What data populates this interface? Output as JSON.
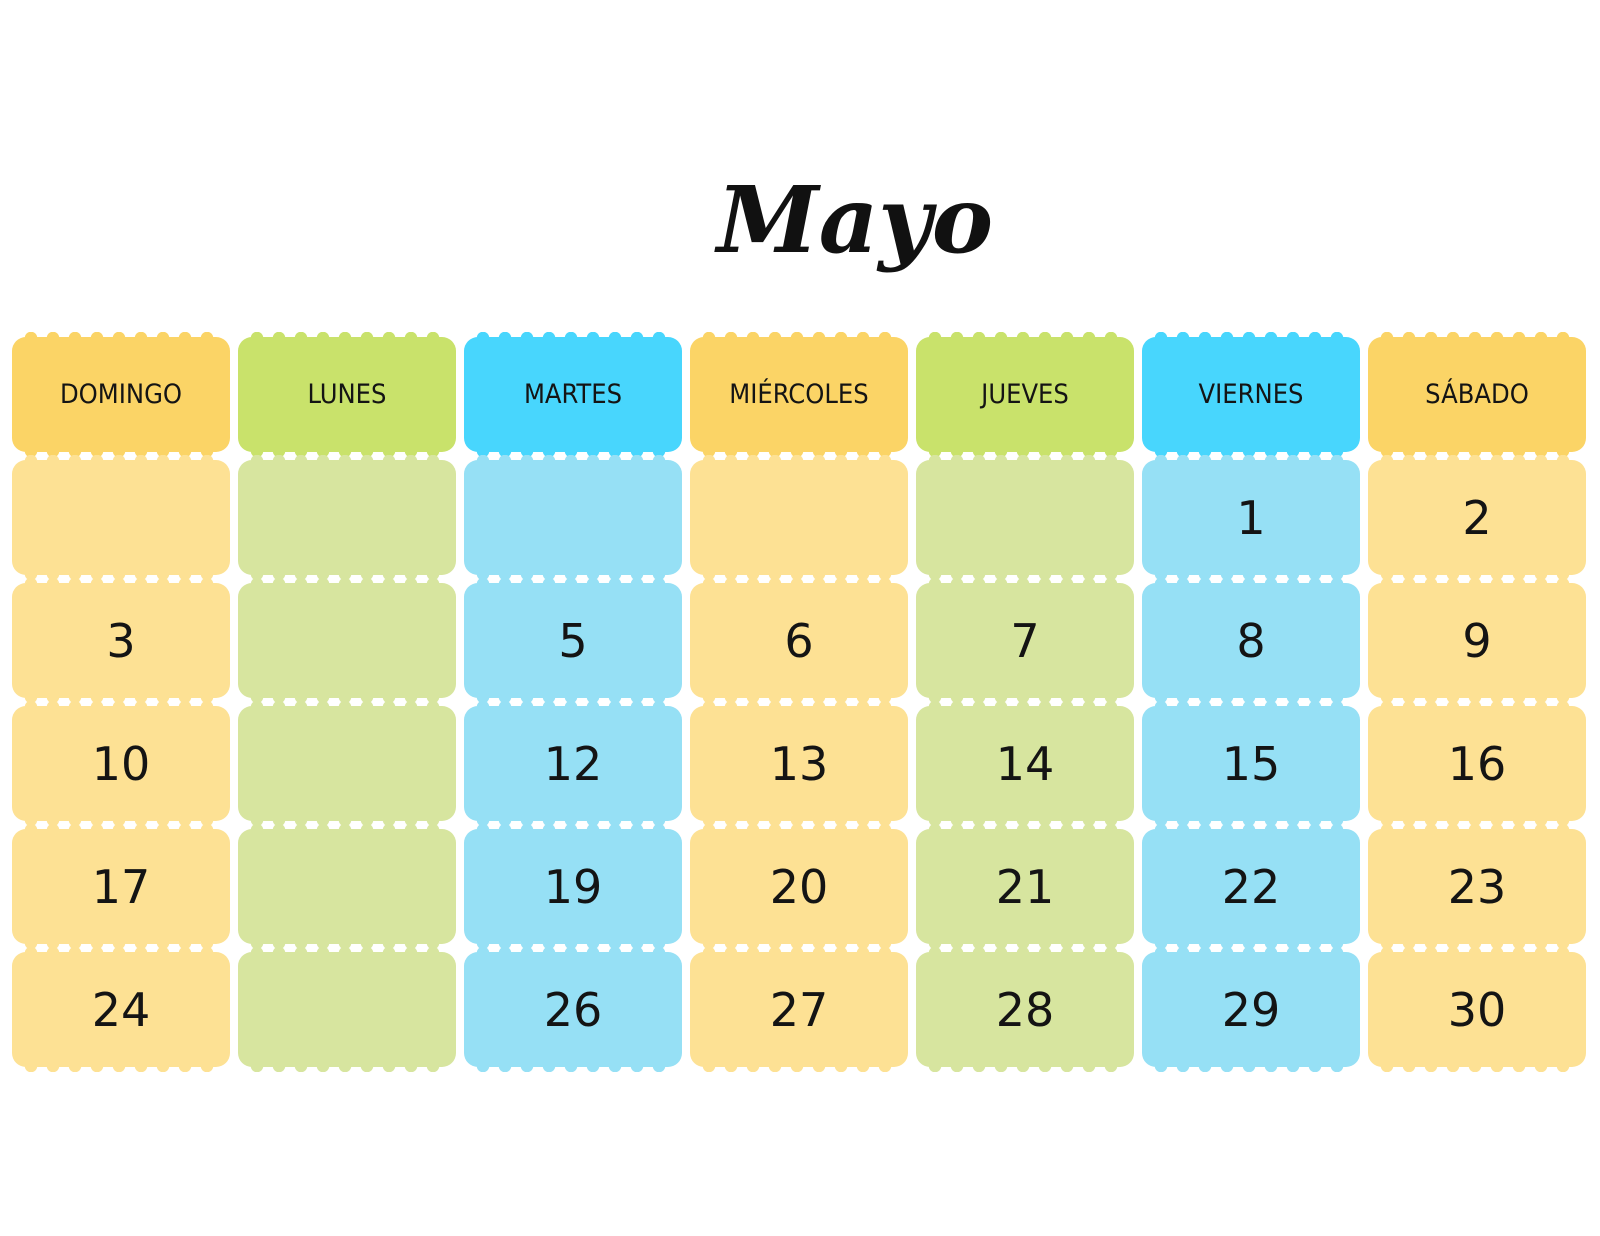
{
  "calendar": {
    "month": "Mayo",
    "weekdays": [
      "DOMINGO",
      "LUNES",
      "MARTES",
      "MIÉRCOLES",
      "JUEVES",
      "VIERNES",
      "SÁBADO"
    ],
    "weeks": [
      [
        "",
        "",
        "",
        "",
        "",
        "1",
        "2"
      ],
      [
        "3",
        "",
        "5",
        "6",
        "7",
        "8",
        "9"
      ],
      [
        "10",
        "",
        "12",
        "13",
        "14",
        "15",
        "16"
      ],
      [
        "17",
        "",
        "19",
        "20",
        "21",
        "22",
        "23"
      ],
      [
        "24",
        "",
        "26",
        "27",
        "28",
        "29",
        "30"
      ]
    ]
  },
  "colors": {
    "header_orange": "#fbd466",
    "header_green": "#c9e26b",
    "header_blue": "#48d6fd",
    "cell_orange": "#fde194",
    "cell_green": "#d7e59f",
    "cell_blue": "#96e0f5"
  }
}
